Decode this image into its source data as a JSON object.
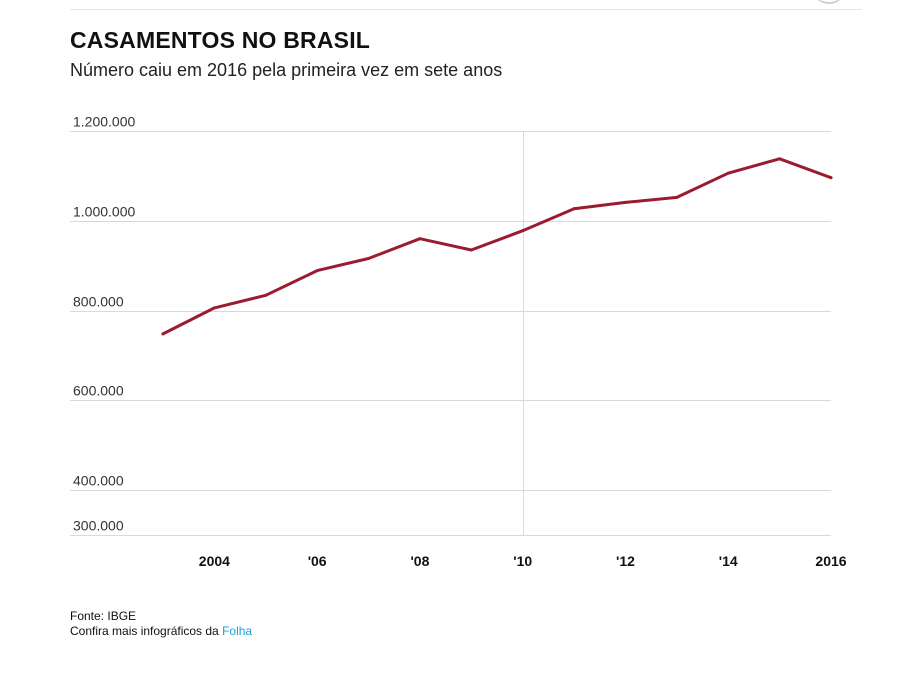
{
  "header": {
    "title": "CASAMENTOS NO BRASIL",
    "subtitle": "Número caiu em 2016 pela primeira vez em sete anos"
  },
  "chart_data": {
    "type": "line",
    "title": "CASAMENTOS NO BRASIL",
    "subtitle": "Número caiu em 2016 pela primeira vez em sete anos",
    "x": [
      2003,
      2004,
      2005,
      2006,
      2007,
      2008,
      2009,
      2010,
      2011,
      2012,
      2013,
      2014,
      2015,
      2016
    ],
    "series": [
      {
        "values": [
          748000,
          806000,
          834000,
          889000,
          916000,
          960000,
          935000,
          978000,
          1027000,
          1041000,
          1052000,
          1106000,
          1138000,
          1096000
        ],
        "color": "#9b1c2e"
      }
    ],
    "y_ticks": [
      {
        "value": 1200000,
        "label": "1.200.000"
      },
      {
        "value": 1000000,
        "label": "1.000.000"
      },
      {
        "value": 800000,
        "label": "800.000"
      },
      {
        "value": 600000,
        "label": "600.000"
      },
      {
        "value": 400000,
        "label": "400.000"
      },
      {
        "value": 300000,
        "label": "300.000"
      }
    ],
    "x_ticks": [
      {
        "value": 2004,
        "label": "2004"
      },
      {
        "value": 2006,
        "label": "'06"
      },
      {
        "value": 2008,
        "label": "'08"
      },
      {
        "value": 2010,
        "label": "'10"
      },
      {
        "value": 2012,
        "label": "'12"
      },
      {
        "value": 2014,
        "label": "'14"
      },
      {
        "value": 2016,
        "label": "2016"
      }
    ],
    "xlim": [
      2003,
      2016
    ],
    "ylim": [
      300000,
      1200000
    ],
    "highlight_x": 2010,
    "grid": true,
    "legend": "none"
  },
  "footer": {
    "source": "Fonte: IBGE",
    "more_prefix": "Confira mais infográficos da ",
    "more_link": "Folha"
  },
  "colors": {
    "line": "#9b1c2e",
    "grid": "#d9d9d9",
    "link": "#1b9fd4"
  }
}
